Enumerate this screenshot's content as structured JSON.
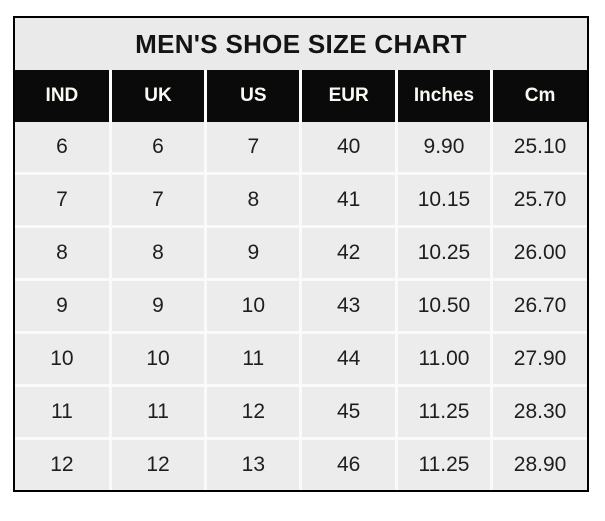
{
  "title": "MEN'S SHOE SIZE CHART",
  "table": {
    "columns": [
      "IND",
      "UK",
      "US",
      "EUR",
      "Inches",
      "Cm"
    ],
    "rows": [
      [
        "6",
        "6",
        "7",
        "40",
        "9.90",
        "25.10"
      ],
      [
        "7",
        "7",
        "8",
        "41",
        "10.15",
        "25.70"
      ],
      [
        "8",
        "8",
        "9",
        "42",
        "10.25",
        "26.00"
      ],
      [
        "9",
        "9",
        "10",
        "43",
        "10.50",
        "26.70"
      ],
      [
        "10",
        "10",
        "11",
        "44",
        "11.00",
        "27.90"
      ],
      [
        "11",
        "11",
        "12",
        "45",
        "11.25",
        "28.30"
      ],
      [
        "12",
        "12",
        "13",
        "46",
        "11.25",
        "28.90"
      ]
    ]
  },
  "colors": {
    "outer_border": "#000000",
    "title_bg": "#eaeaea",
    "header_bg": "#0a0a0a",
    "header_text": "#fafaf5",
    "cell_bg": "#ececec",
    "cell_separator": "#fafafa",
    "text": "#1e1e1e",
    "page_bg": "#ffffff"
  },
  "chart_data": {
    "type": "table",
    "title": "MEN'S SHOE SIZE CHART",
    "columns": [
      "IND",
      "UK",
      "US",
      "EUR",
      "Inches",
      "Cm"
    ],
    "rows": [
      [
        6,
        6,
        7,
        40,
        9.9,
        25.1
      ],
      [
        7,
        7,
        8,
        41,
        10.15,
        25.7
      ],
      [
        8,
        8,
        9,
        42,
        10.25,
        26.0
      ],
      [
        9,
        9,
        10,
        43,
        10.5,
        26.7
      ],
      [
        10,
        10,
        11,
        44,
        11.0,
        27.9
      ],
      [
        11,
        11,
        12,
        45,
        11.25,
        28.3
      ],
      [
        12,
        12,
        13,
        46,
        11.25,
        28.9
      ]
    ],
    "layout_hints": {
      "header_style": "black background, white bold text",
      "title_position": "top, centered, merged across all columns",
      "grid": "white 3px separators between light gray cells, 2px black outer border"
    }
  }
}
